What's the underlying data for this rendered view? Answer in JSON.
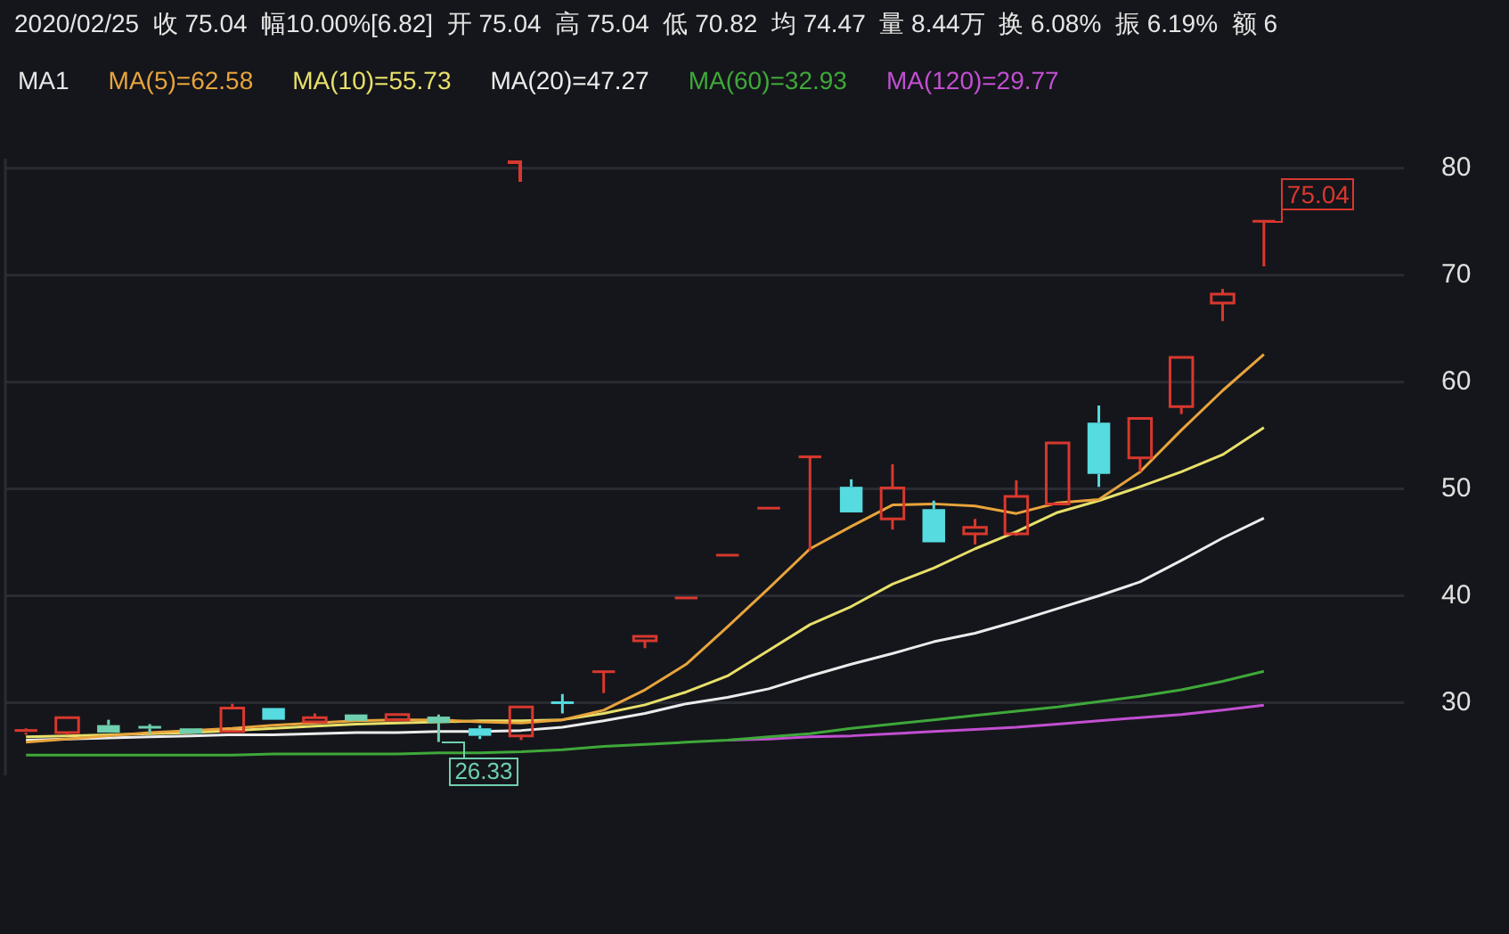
{
  "chart_data": {
    "type": "candlestick",
    "title": "2020/02/25  收 75.04  幅10.00%[6.82]  开 75.04  高 75.04  低 70.82  均 74.47  量 8.44万  换 6.08%  振 6.19%  额 6",
    "legend_title": "MA1",
    "legend": "top left",
    "grid": "y",
    "tick_labels": "y",
    "categories": [
      null,
      null,
      null,
      null,
      null,
      null,
      null,
      null,
      null,
      null,
      null,
      null,
      null,
      null,
      null,
      null,
      null,
      null,
      null,
      null,
      null,
      null,
      null,
      null,
      null,
      null,
      null,
      null,
      null,
      null,
      null
    ],
    "ohlc": [
      [
        27.2,
        27.6,
        27.0,
        27.4
      ],
      [
        27.2,
        28.6,
        27.0,
        28.6
      ],
      [
        27.9,
        28.4,
        27.2,
        27.2
      ],
      [
        27.7,
        28.0,
        27.1,
        27.6
      ],
      [
        27.6,
        27.6,
        27.1,
        27.1
      ],
      [
        27.3,
        29.9,
        27.3,
        29.5
      ],
      [
        29.5,
        29.5,
        28.4,
        28.4
      ],
      [
        28.2,
        29.0,
        28.2,
        28.6
      ],
      [
        28.9,
        28.9,
        28.3,
        28.3
      ],
      [
        28.4,
        28.9,
        28.4,
        28.9
      ],
      [
        28.7,
        28.9,
        26.33,
        28.1
      ],
      [
        27.6,
        27.9,
        26.6,
        26.9
      ],
      [
        26.9,
        29.6,
        26.5,
        29.6
      ],
      [
        30.0,
        30.8,
        29.0,
        29.9
      ],
      [
        32.9,
        32.9,
        30.9,
        32.9
      ],
      [
        35.8,
        36.2,
        35.1,
        36.2
      ],
      [
        39.8,
        39.8,
        39.8,
        39.8
      ],
      [
        43.8,
        43.8,
        43.8,
        43.8
      ],
      [
        48.2,
        48.2,
        48.2,
        48.2
      ],
      [
        53.0,
        53.0,
        44.2,
        53.0
      ],
      [
        50.2,
        50.9,
        47.8,
        47.8
      ],
      [
        47.2,
        52.3,
        46.2,
        50.1
      ],
      [
        48.1,
        48.9,
        45.0,
        45.0
      ],
      [
        45.8,
        47.2,
        44.8,
        46.4
      ],
      [
        45.8,
        50.8,
        45.6,
        49.3
      ],
      [
        48.6,
        54.3,
        48.6,
        54.3
      ],
      [
        56.2,
        57.8,
        50.2,
        51.4
      ],
      [
        52.9,
        56.6,
        51.6,
        56.6
      ],
      [
        57.7,
        62.3,
        57.0,
        62.3
      ],
      [
        67.4,
        68.7,
        65.7,
        68.22
      ],
      [
        75.04,
        75.04,
        70.82,
        75.04
      ]
    ],
    "colors": [
      "#d8382e",
      "#d8382e",
      "#6fcfae",
      "#6fcfae",
      "#6fcfae",
      "#d8382e",
      "#55dbe0",
      "#d8382e",
      "#6fcfae",
      "#d8382e",
      "#6fcfae",
      "#55dbe0",
      "#d8382e",
      "#55dbe0",
      "#d8382e",
      "#d8382e",
      "#d8382e",
      "#d8382e",
      "#d8382e",
      "#d8382e",
      "#55dbe0",
      "#d8382e",
      "#55dbe0",
      "#d8382e",
      "#d8382e",
      "#d8382e",
      "#55dbe0",
      "#d8382e",
      "#d8382e",
      "#d8382e",
      "#d8382e"
    ],
    "series": [
      {
        "type": "line",
        "name": "MA(5)=62.58",
        "color": "#e8a43c",
        "values": [
          26.3,
          26.6,
          26.9,
          27.2,
          27.4,
          27.6,
          27.9,
          28.1,
          28.3,
          28.4,
          28.4,
          28.2,
          28.1,
          28.4,
          29.3,
          31.2,
          33.6,
          37.1,
          40.7,
          44.4,
          46.5,
          48.5,
          48.6,
          48.4,
          47.7,
          48.7,
          49.0,
          51.6,
          55.5,
          59.2,
          62.58
        ]
      },
      {
        "type": "line",
        "name": "MA(10)=55.73",
        "color": "#e8e06a",
        "values": [
          26.8,
          26.9,
          27.0,
          27.1,
          27.2,
          27.4,
          27.6,
          27.8,
          28.0,
          28.1,
          28.2,
          28.3,
          28.3,
          28.4,
          29.0,
          29.8,
          31.0,
          32.5,
          34.9,
          37.3,
          39.0,
          41.1,
          42.6,
          44.4,
          46.0,
          47.8,
          48.9,
          50.2,
          51.6,
          53.2,
          55.73
        ]
      },
      {
        "type": "line",
        "name": "MA(20)=47.27",
        "color": "#ececec",
        "values": [
          26.5,
          26.6,
          26.7,
          26.8,
          26.9,
          27.0,
          27.0,
          27.1,
          27.2,
          27.2,
          27.3,
          27.3,
          27.4,
          27.7,
          28.3,
          29.0,
          29.9,
          30.5,
          31.3,
          32.5,
          33.6,
          34.6,
          35.7,
          36.5,
          37.6,
          38.8,
          40.0,
          41.3,
          43.3,
          45.4,
          47.27
        ]
      },
      {
        "type": "line",
        "name": "MA(60)=32.93",
        "color": "#3fa83a",
        "values": [
          25.1,
          25.1,
          25.1,
          25.1,
          25.1,
          25.1,
          25.2,
          25.2,
          25.2,
          25.2,
          25.3,
          25.3,
          25.4,
          25.6,
          25.9,
          26.1,
          26.3,
          26.5,
          26.8,
          27.1,
          27.6,
          28.0,
          28.4,
          28.8,
          29.2,
          29.6,
          30.1,
          30.6,
          31.2,
          32.0,
          32.93
        ]
      },
      {
        "type": "line",
        "name": "MA(120)=29.77",
        "color": "#c24fd2",
        "values": [
          null,
          null,
          null,
          null,
          null,
          null,
          null,
          null,
          null,
          null,
          null,
          null,
          null,
          null,
          null,
          null,
          null,
          26.5,
          26.6,
          26.8,
          26.9,
          27.1,
          27.3,
          27.5,
          27.7,
          28.0,
          28.3,
          28.6,
          28.9,
          29.3,
          29.77
        ]
      }
    ],
    "ylim": [
      23.2,
      80.9
    ],
    "yticks": [
      30,
      40,
      50,
      60,
      70,
      80
    ],
    "annotations": [
      "26.33",
      "75.04"
    ]
  }
}
